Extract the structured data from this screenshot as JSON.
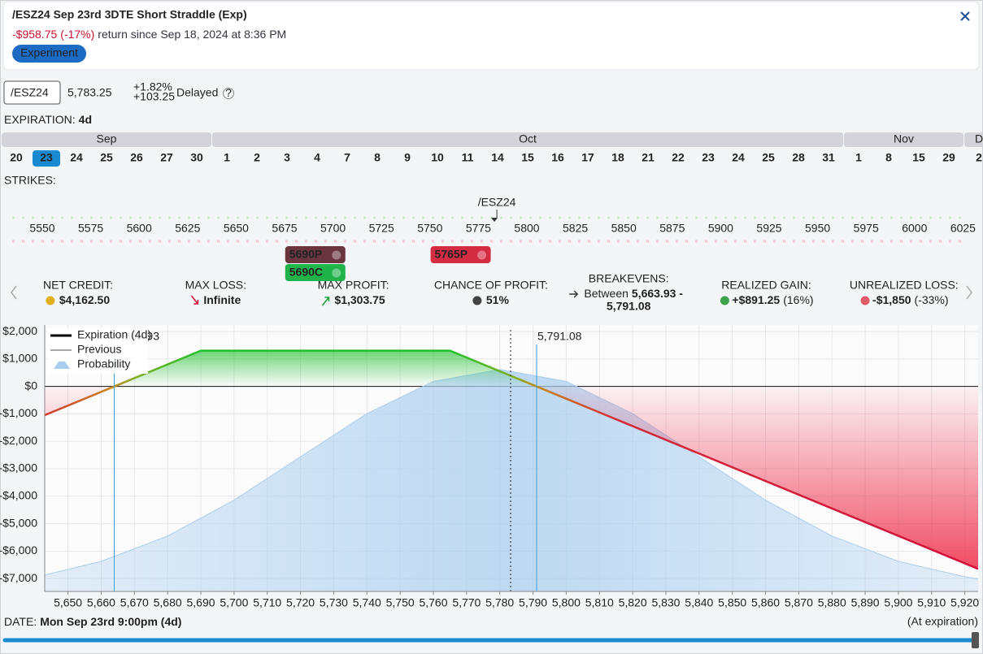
{
  "header": {
    "title": "/ESZ24 Sep 23rd 3DTE Short Straddle (Exp)",
    "return_value": "-$958.75",
    "return_pct": "(-17%)",
    "return_text": "return since Sep 18, 2024 at 8:36 PM",
    "tag": "Experiment"
  },
  "quote": {
    "symbol": "/ESZ24",
    "price": "5,783.25",
    "change_pct": "+1.82%",
    "change": "+103.25",
    "status": "Delayed",
    "help": "?"
  },
  "expiration": {
    "label": "EXPIRATION:",
    "value": "4d",
    "months": [
      {
        "name": "Sep",
        "days": [
          "20",
          "23",
          "24",
          "25",
          "26",
          "27",
          "30"
        ],
        "selected": "23"
      },
      {
        "name": "Oct",
        "days": [
          "1",
          "2",
          "3",
          "4",
          "7",
          "8",
          "9",
          "10",
          "11",
          "14",
          "15",
          "16",
          "17",
          "18",
          "21",
          "22",
          "23",
          "24",
          "25",
          "28",
          "31"
        ]
      },
      {
        "name": "Nov",
        "days": [
          "1",
          "8",
          "15",
          "29"
        ]
      },
      {
        "name": "D",
        "days": [
          "2"
        ]
      }
    ]
  },
  "strikes": {
    "label": "STRIKES:",
    "underlying": "/ESZ24",
    "underlying_price": 5783.25,
    "values": [
      5550,
      5575,
      5600,
      5625,
      5650,
      5675,
      5700,
      5725,
      5750,
      5775,
      5800,
      5825,
      5850,
      5875,
      5900,
      5925,
      5950,
      5975,
      6000,
      6025
    ],
    "legs": [
      {
        "label": "5690P",
        "strike": 5690,
        "color": "#6b3540"
      },
      {
        "label": "5690C",
        "strike": 5690,
        "color": "#1fb34a"
      },
      {
        "label": "5765P",
        "strike": 5765,
        "color": "#d42c42"
      }
    ]
  },
  "stats": [
    {
      "label": "NET CREDIT:",
      "value": "$4,162.50"
    },
    {
      "label": "MAX LOSS:",
      "value": "Infinite"
    },
    {
      "label": "MAX PROFIT:",
      "value": "$1,303.75"
    },
    {
      "label": "CHANCE OF PROFIT:",
      "value": "51%"
    },
    {
      "label": "BREAKEVENS:",
      "prefix": "Between",
      "value": "5,663.93 -",
      "value2": "5,791.08"
    },
    {
      "label": "REALIZED GAIN:",
      "value": "+$891.25",
      "extra": "(16%)"
    },
    {
      "label": "UNREALIZED LOSS:",
      "value": "-$1,850",
      "extra": "(-33%)"
    }
  ],
  "chart_data": {
    "type": "line",
    "xlim": [
      5643,
      5924
    ],
    "ylim": [
      -7470,
      2240
    ],
    "grid": true,
    "current_x": 5783.25,
    "xticks": [
      {
        "value": 5650,
        "label": "5,650"
      },
      {
        "value": 5660,
        "label": "5,660"
      },
      {
        "value": 5670,
        "label": "5,670"
      },
      {
        "value": 5680,
        "label": "5,680"
      },
      {
        "value": 5690,
        "label": "5,690"
      },
      {
        "value": 5700,
        "label": "5,700"
      },
      {
        "value": 5710,
        "label": "5,710"
      },
      {
        "value": 5720,
        "label": "5,720"
      },
      {
        "value": 5730,
        "label": "5,730"
      },
      {
        "value": 5740,
        "label": "5,740"
      },
      {
        "value": 5750,
        "label": "5,750"
      },
      {
        "value": 5760,
        "label": "5,760"
      },
      {
        "value": 5770,
        "label": "5,770"
      },
      {
        "value": 5780,
        "label": "5,780"
      },
      {
        "value": 5790,
        "label": "5,790"
      },
      {
        "value": 5800,
        "label": "5,800"
      },
      {
        "value": 5810,
        "label": "5,810"
      },
      {
        "value": 5820,
        "label": "5,820"
      },
      {
        "value": 5830,
        "label": "5,830"
      },
      {
        "value": 5840,
        "label": "5,840"
      },
      {
        "value": 5850,
        "label": "5,850"
      },
      {
        "value": 5860,
        "label": "5,860"
      },
      {
        "value": 5870,
        "label": "5,870"
      },
      {
        "value": 5880,
        "label": "5,880"
      },
      {
        "value": 5890,
        "label": "5,890"
      },
      {
        "value": 5900,
        "label": "5,900"
      },
      {
        "value": 5910,
        "label": "5,910"
      },
      {
        "value": 5920,
        "label": "5,920"
      }
    ],
    "yticks": [
      {
        "value": 2000,
        "label": "$2,000"
      },
      {
        "value": 1000,
        "label": "$1,000"
      },
      {
        "value": 0,
        "label": "$0"
      },
      {
        "value": -1000,
        "label": "-$1,000"
      },
      {
        "value": -2000,
        "label": "-$2,000"
      },
      {
        "value": -3000,
        "label": "-$3,000"
      },
      {
        "value": -4000,
        "label": "-$4,000"
      },
      {
        "value": -5000,
        "label": "-$5,000"
      },
      {
        "value": -6000,
        "label": "-$6,000"
      },
      {
        "value": -7000,
        "label": "-$7,000"
      }
    ],
    "breakevens": [
      {
        "x": 5663.93,
        "label": "5,663.93"
      },
      {
        "x": 5791.08,
        "label": "5,791.08"
      }
    ],
    "series": [
      {
        "name": "Expiration (4d)",
        "color": "#000000",
        "x": [
          5643,
          5663.93,
          5690,
          5765,
          5791.08,
          5924
        ],
        "values": [
          -1046.5,
          0,
          1303.75,
          1303.75,
          0,
          -6646
        ]
      },
      {
        "name": "Previous",
        "color": "#8a8a8a",
        "x": [],
        "values": []
      },
      {
        "name": "Probability",
        "color": "#a9cdee",
        "x": [
          5643,
          5660,
          5680,
          5700,
          5720,
          5740,
          5760,
          5780,
          5800,
          5820,
          5840,
          5860,
          5880,
          5900,
          5920,
          5924
        ],
        "values": [
          -6873,
          -6375,
          -5452,
          -4144,
          -2563,
          -992,
          183,
          620,
          183,
          -992,
          -2563,
          -4144,
          -5452,
          -6375,
          -6938,
          -7016
        ]
      }
    ]
  },
  "footer": {
    "label": "DATE:",
    "value": "Mon Sep 23rd 9:00pm (4d)",
    "right": "(At expiration)"
  }
}
